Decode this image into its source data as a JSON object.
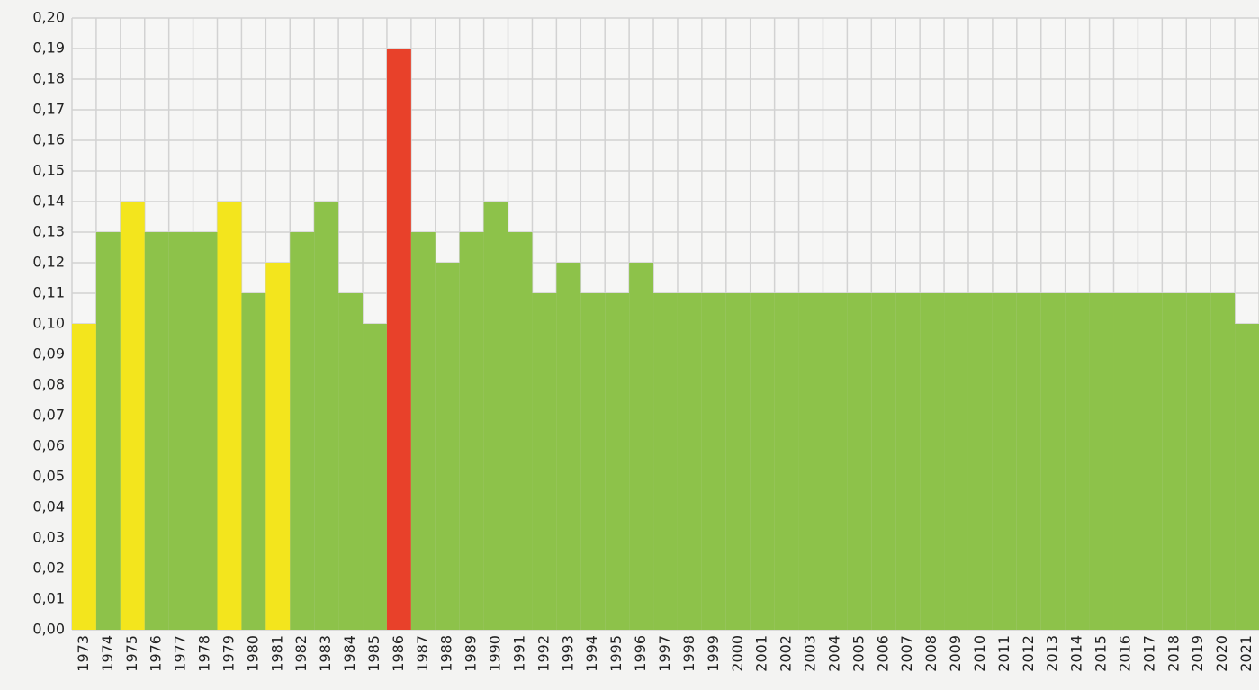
{
  "chart_data": {
    "type": "bar",
    "categories": [
      "1973",
      "1974",
      "1975",
      "1976",
      "1977",
      "1978",
      "1979",
      "1980",
      "1981",
      "1982",
      "1983",
      "1984",
      "1985",
      "1986",
      "1987",
      "1988",
      "1989",
      "1990",
      "1991",
      "1992",
      "1993",
      "1994",
      "1995",
      "1996",
      "1997",
      "1998",
      "1999",
      "2000",
      "2001",
      "2002",
      "2003",
      "2004",
      "2005",
      "2006",
      "2007",
      "2008",
      "2009",
      "2010",
      "2011",
      "2012",
      "2013",
      "2014",
      "2015",
      "2016",
      "2017",
      "2018",
      "2019",
      "2020",
      "2021"
    ],
    "values": [
      0.1,
      0.13,
      0.14,
      0.13,
      0.13,
      0.13,
      0.14,
      0.11,
      0.12,
      0.13,
      0.14,
      0.11,
      0.1,
      0.19,
      0.13,
      0.12,
      0.13,
      0.14,
      0.13,
      0.11,
      0.12,
      0.11,
      0.11,
      0.12,
      0.11,
      0.11,
      0.11,
      0.11,
      0.11,
      0.11,
      0.11,
      0.11,
      0.11,
      0.11,
      0.11,
      0.11,
      0.11,
      0.11,
      0.11,
      0.11,
      0.11,
      0.11,
      0.11,
      0.11,
      0.11,
      0.11,
      0.11,
      0.11,
      0.1
    ],
    "colors": [
      "#f3e51d",
      "#8dc24a",
      "#f3e51d",
      "#8dc24a",
      "#8dc24a",
      "#8dc24a",
      "#f3e51d",
      "#8dc24a",
      "#f3e51d",
      "#8dc24a",
      "#8dc24a",
      "#8dc24a",
      "#8dc24a",
      "#e8412a",
      "#8dc24a",
      "#8dc24a",
      "#8dc24a",
      "#8dc24a",
      "#8dc24a",
      "#8dc24a",
      "#8dc24a",
      "#8dc24a",
      "#8dc24a",
      "#8dc24a",
      "#8dc24a",
      "#8dc24a",
      "#8dc24a",
      "#8dc24a",
      "#8dc24a",
      "#8dc24a",
      "#8dc24a",
      "#8dc24a",
      "#8dc24a",
      "#8dc24a",
      "#8dc24a",
      "#8dc24a",
      "#8dc24a",
      "#8dc24a",
      "#8dc24a",
      "#8dc24a",
      "#8dc24a",
      "#8dc24a",
      "#8dc24a",
      "#8dc24a",
      "#8dc24a",
      "#8dc24a",
      "#8dc24a",
      "#8dc24a",
      "#8dc24a"
    ],
    "ylim": [
      0,
      0.2
    ],
    "yticks": [
      {
        "value": 0,
        "label": "0,00"
      },
      {
        "value": 0.01,
        "label": "0,01"
      },
      {
        "value": 0.02,
        "label": "0,02"
      },
      {
        "value": 0.03,
        "label": "0,03"
      },
      {
        "value": 0.04,
        "label": "0,04"
      },
      {
        "value": 0.05,
        "label": "0,05"
      },
      {
        "value": 0.06,
        "label": "0,06"
      },
      {
        "value": 0.07,
        "label": "0,07"
      },
      {
        "value": 0.08,
        "label": "0,08"
      },
      {
        "value": 0.09,
        "label": "0,09"
      },
      {
        "value": 0.1,
        "label": "0,10"
      },
      {
        "value": 0.11,
        "label": "0,11"
      },
      {
        "value": 0.12,
        "label": "0,12"
      },
      {
        "value": 0.13,
        "label": "0,13"
      },
      {
        "value": 0.14,
        "label": "0,14"
      },
      {
        "value": 0.15,
        "label": "0,15"
      },
      {
        "value": 0.16,
        "label": "0,16"
      },
      {
        "value": 0.17,
        "label": "0,17"
      },
      {
        "value": 0.18,
        "label": "0,18"
      },
      {
        "value": 0.19,
        "label": "0,19"
      },
      {
        "value": 0.2,
        "label": "0,20"
      }
    ],
    "grid": true
  }
}
